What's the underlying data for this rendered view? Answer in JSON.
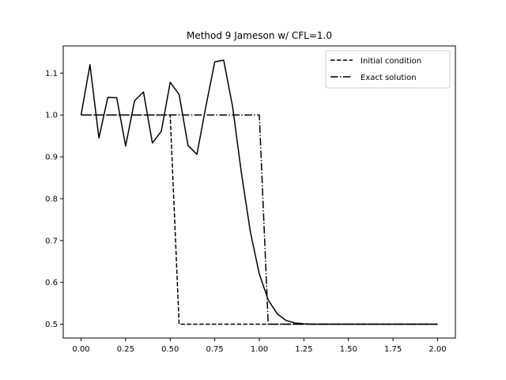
{
  "chart_data": {
    "type": "line",
    "title": "Method 9 Jameson w/ CFL=1.0",
    "xlabel": "",
    "ylabel": "",
    "xlim": [
      -0.1,
      2.1
    ],
    "ylim": [
      0.467,
      1.165
    ],
    "xticks": [
      0.0,
      0.25,
      0.5,
      0.75,
      1.0,
      1.25,
      1.5,
      1.75,
      2.0
    ],
    "xtick_labels": [
      "0.00",
      "0.25",
      "0.50",
      "0.75",
      "1.00",
      "1.25",
      "1.50",
      "1.75",
      "2.00"
    ],
    "yticks": [
      0.5,
      0.6,
      0.7,
      0.8,
      0.9,
      1.0,
      1.1
    ],
    "ytick_labels": [
      "0.5",
      "0.6",
      "0.7",
      "0.8",
      "0.9",
      "1.0",
      "1.1"
    ],
    "grid": false,
    "legend_position": "upper right",
    "series": [
      {
        "name": "Initial condition",
        "style": "dashed",
        "color": "#000000",
        "x": [
          0.0,
          0.5,
          0.55,
          2.0
        ],
        "y": [
          1.0,
          1.0,
          0.5,
          0.5
        ]
      },
      {
        "name": "Exact solution",
        "style": "dashdot",
        "color": "#000000",
        "x": [
          0.0,
          1.0,
          1.05,
          2.0
        ],
        "y": [
          1.0,
          1.0,
          0.5,
          0.5
        ]
      },
      {
        "name": "",
        "style": "solid",
        "color": "#000000",
        "x": [
          0.0,
          0.05,
          0.1,
          0.15,
          0.2,
          0.25,
          0.3,
          0.35,
          0.4,
          0.45,
          0.5,
          0.55,
          0.6,
          0.65,
          0.7,
          0.75,
          0.8,
          0.85,
          0.9,
          0.95,
          1.0,
          1.05,
          1.1,
          1.15,
          1.2,
          1.25,
          1.3,
          1.35,
          1.4,
          1.45,
          1.5,
          1.55,
          1.6,
          1.65,
          1.7,
          1.75,
          1.8,
          1.85,
          1.9,
          1.95,
          2.0
        ],
        "y": [
          1.0,
          1.12,
          0.945,
          1.042,
          1.041,
          0.926,
          1.034,
          1.055,
          0.933,
          0.961,
          1.078,
          1.049,
          0.927,
          0.906,
          1.02,
          1.127,
          1.131,
          1.02,
          0.86,
          0.72,
          0.62,
          0.558,
          0.525,
          0.509,
          0.503,
          0.501,
          0.5,
          0.5,
          0.5,
          0.5,
          0.5,
          0.5,
          0.5,
          0.5,
          0.5,
          0.5,
          0.5,
          0.5,
          0.5,
          0.5,
          0.5
        ]
      }
    ]
  }
}
